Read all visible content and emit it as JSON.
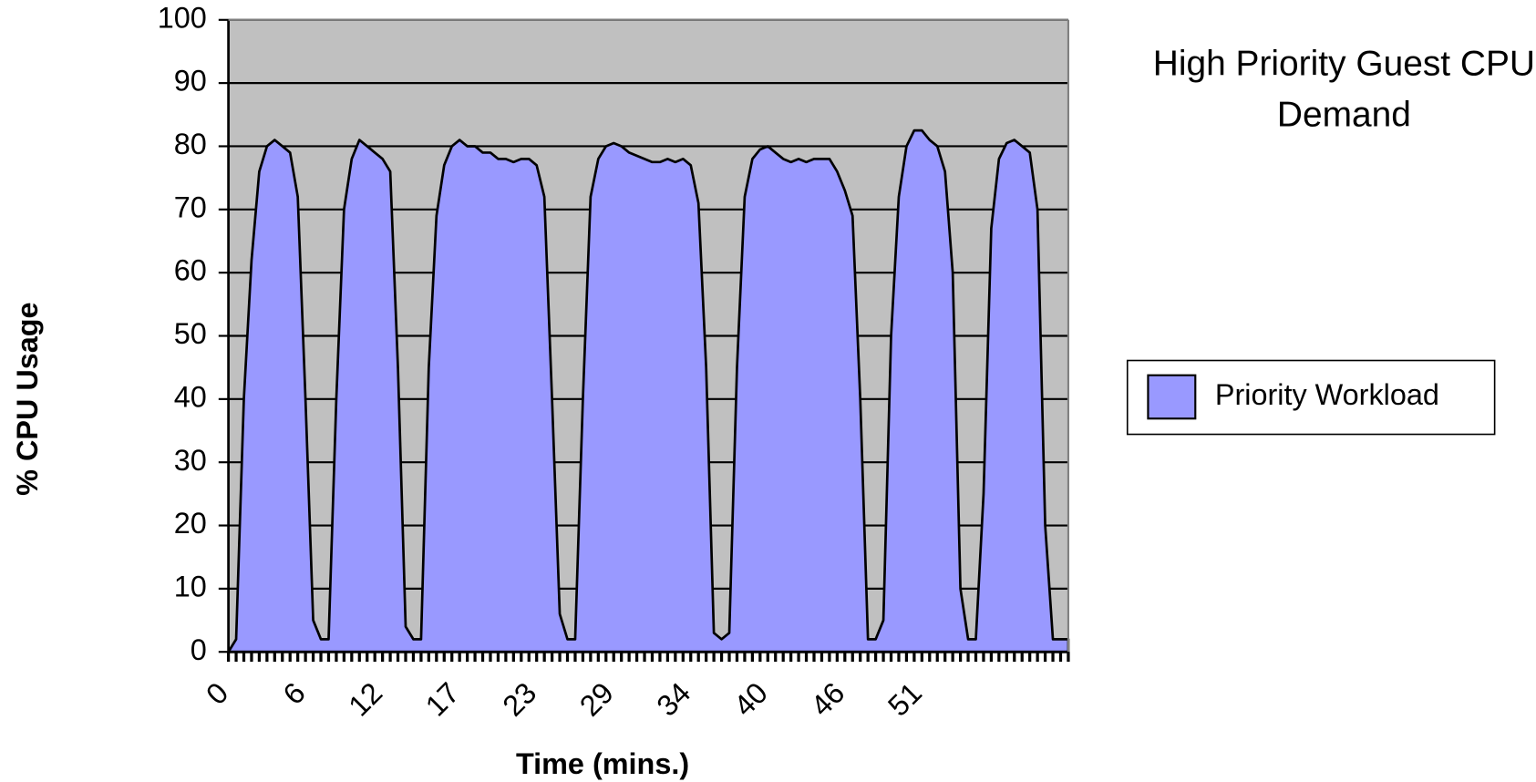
{
  "chart_data": {
    "type": "area",
    "title": "High Priority Guest CPU Demand",
    "x_label": "Time (mins.)",
    "y_label": "% CPU Usage",
    "categories": [
      "0",
      null,
      null,
      null,
      null,
      null,
      null,
      null,
      null,
      null,
      "6",
      null,
      null,
      null,
      null,
      null,
      null,
      null,
      null,
      null,
      "12",
      null,
      null,
      null,
      null,
      null,
      null,
      null,
      null,
      null,
      "17",
      null,
      null,
      null,
      null,
      null,
      null,
      null,
      null,
      null,
      "23",
      null,
      null,
      null,
      null,
      null,
      null,
      null,
      null,
      null,
      "29",
      null,
      null,
      null,
      null,
      null,
      null,
      null,
      null,
      null,
      "34",
      null,
      null,
      null,
      null,
      null,
      null,
      null,
      null,
      null,
      "40",
      null,
      null,
      null,
      null,
      null,
      null,
      null,
      null,
      null,
      "46",
      null,
      null,
      null,
      null,
      null,
      null,
      null,
      null,
      null,
      "51",
      null,
      null,
      null,
      null,
      null,
      null,
      null,
      null,
      null,
      null,
      null,
      null,
      null,
      null,
      null,
      null,
      null,
      null,
      null
    ],
    "series": [
      {
        "name": "Priority Workload",
        "color": "#9999ff",
        "values": [
          0,
          2,
          40,
          62,
          76,
          80,
          81,
          80,
          79,
          72,
          40,
          5,
          2,
          2,
          40,
          70,
          78,
          81,
          80,
          79,
          78,
          76,
          45,
          4,
          2,
          2,
          45,
          69,
          77,
          80,
          81,
          80,
          80,
          79,
          79,
          78,
          78,
          77.5,
          78,
          78,
          77,
          72,
          40,
          6,
          2,
          2,
          40,
          72,
          78,
          80,
          80.5,
          80,
          79,
          78.5,
          78,
          77.5,
          77.5,
          78,
          77.5,
          78,
          77,
          71,
          45,
          3,
          2,
          3,
          45,
          72,
          78,
          79.5,
          80,
          79,
          78,
          77.5,
          78,
          77.5,
          78,
          78,
          78,
          76,
          73,
          69,
          40,
          2,
          2,
          5,
          50,
          72,
          80,
          82.5,
          82.5,
          81,
          80,
          76,
          60,
          10,
          2,
          2,
          25,
          67,
          78,
          80.5,
          81,
          80,
          79,
          70,
          20,
          2,
          2,
          2
        ]
      }
    ],
    "ylim": [
      0,
      100
    ],
    "yticks": [
      0,
      10,
      20,
      30,
      40,
      50,
      60,
      70,
      80,
      90,
      100
    ],
    "grid": true,
    "plot_background": "#c0c0c0",
    "legend": "right"
  }
}
